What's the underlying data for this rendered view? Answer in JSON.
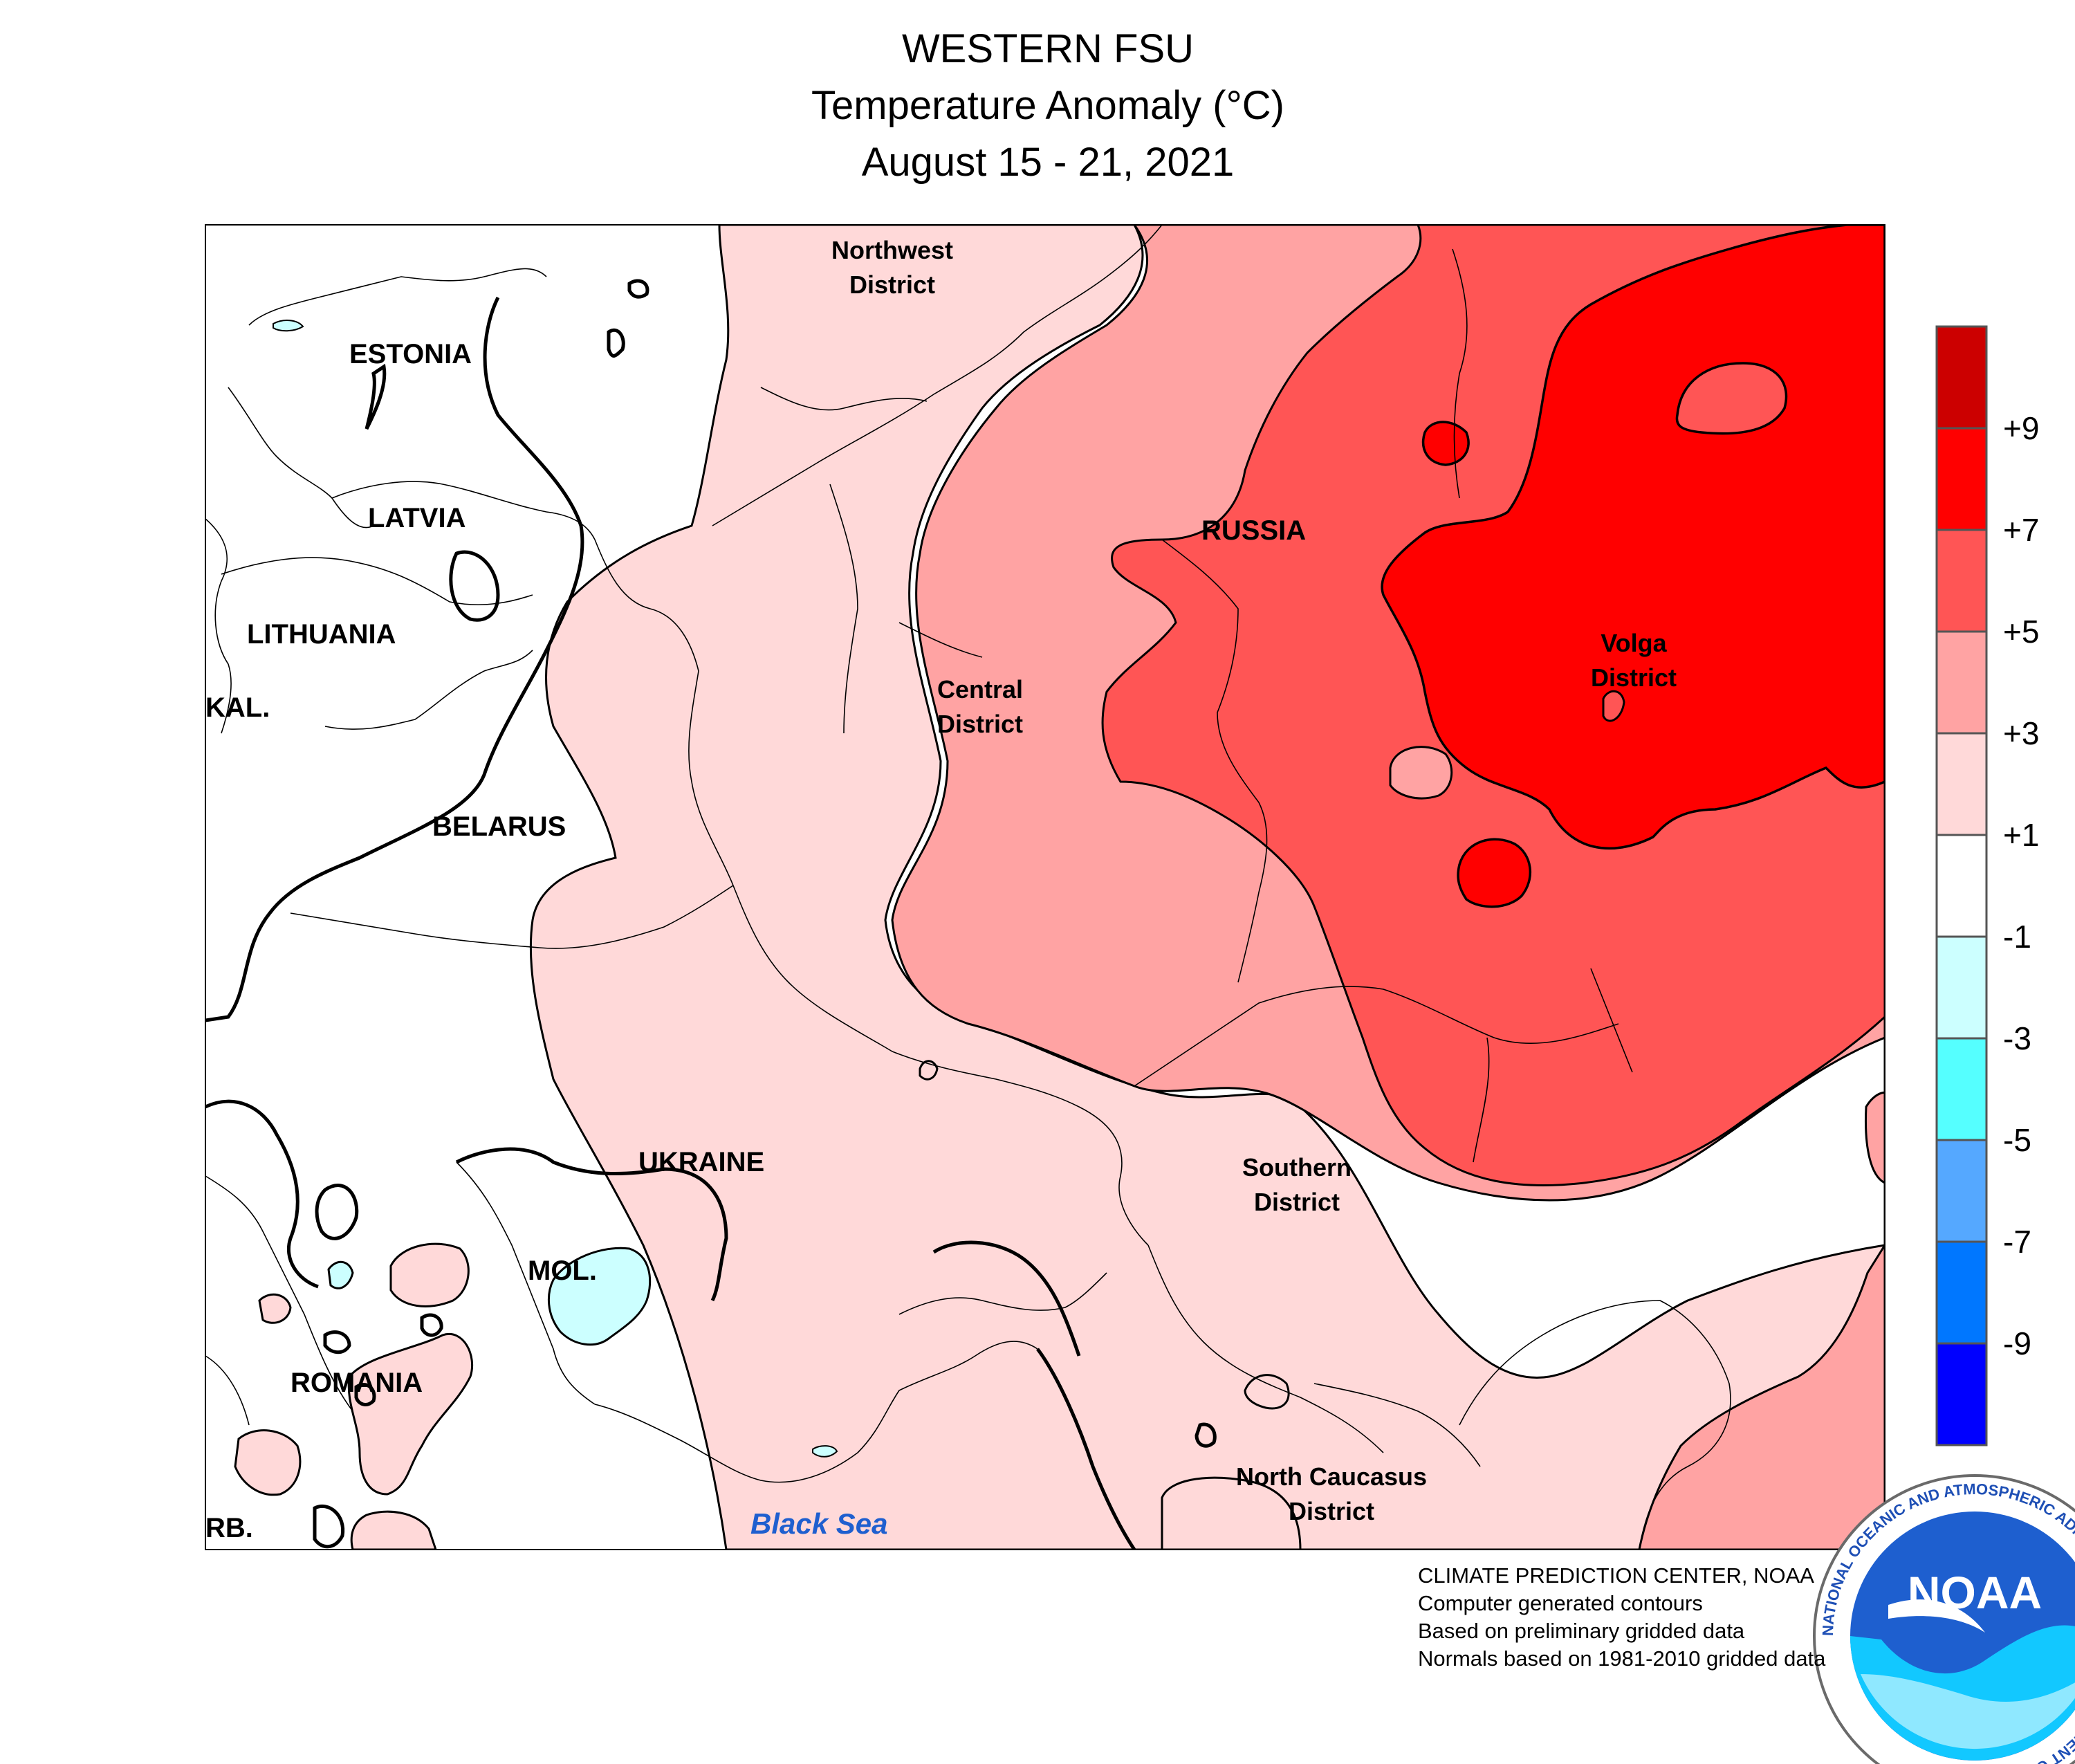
{
  "header": {
    "title": "WESTERN FSU",
    "subtitle": "Temperature Anomaly (°C)",
    "date_range": "August 15 - 21, 2021"
  },
  "map": {
    "labels": {
      "estonia": "ESTONIA",
      "latvia": "LATVIA",
      "lithuania": "LITHUANIA",
      "kaliningrad": "KAL.",
      "belarus": "BELARUS",
      "ukraine": "UKRAINE",
      "moldova": "MOL.",
      "romania": "ROMANIA",
      "serbia": "RB.",
      "russia": "RUSSIA",
      "black_sea": "Black Sea",
      "northwest_district_1": "Northwest",
      "northwest_district_2": "District",
      "central_district_1": "Central",
      "central_district_2": "District",
      "volga_district_1": "Volga",
      "volga_district_2": "District",
      "southern_district_1": "Southern",
      "southern_district_2": "District",
      "north_caucasus_1": "North Caucasus",
      "north_caucasus_2": "District"
    },
    "colors": {
      "anom_gt9": "#cc0000",
      "anom_7_9": "#ff0000",
      "anom_5_7": "#ff5555",
      "anom_3_5": "#ffa3a3",
      "anom_1_3": "#ffd9d9",
      "anom_neg1_1": "#ffffff",
      "anom_neg3_neg1": "#ccffff",
      "anom_neg5_neg3": "#55ffff",
      "anom_neg7_neg5": "#55a8ff",
      "anom_neg9_neg7": "#0077ff",
      "anom_lt_neg9": "#0000ff",
      "water_label": "#1f5fcf"
    }
  },
  "legend": {
    "ticks": [
      "+9",
      "+7",
      "+5",
      "+3",
      "+1",
      "-1",
      "-3",
      "-5",
      "-7",
      "-9"
    ],
    "colors": [
      "#cc0000",
      "#ff0000",
      "#ff5555",
      "#ffa3a3",
      "#ffd9d9",
      "#ffffff",
      "#ccffff",
      "#55ffff",
      "#55a8ff",
      "#0077ff",
      "#0000ff"
    ]
  },
  "credits": {
    "line1": "CLIMATE PREDICTION CENTER, NOAA",
    "line2": "Computer generated contours",
    "line3": "Based on preliminary gridded data",
    "line4": "Normals based on 1981-2010 gridded data"
  },
  "logo": {
    "text": "NOAA",
    "ring_text": "NATIONAL OCEANIC AND ATMOSPHERIC ADMINISTRATION · U.S. DEPARTMENT OF COMMERCE"
  }
}
